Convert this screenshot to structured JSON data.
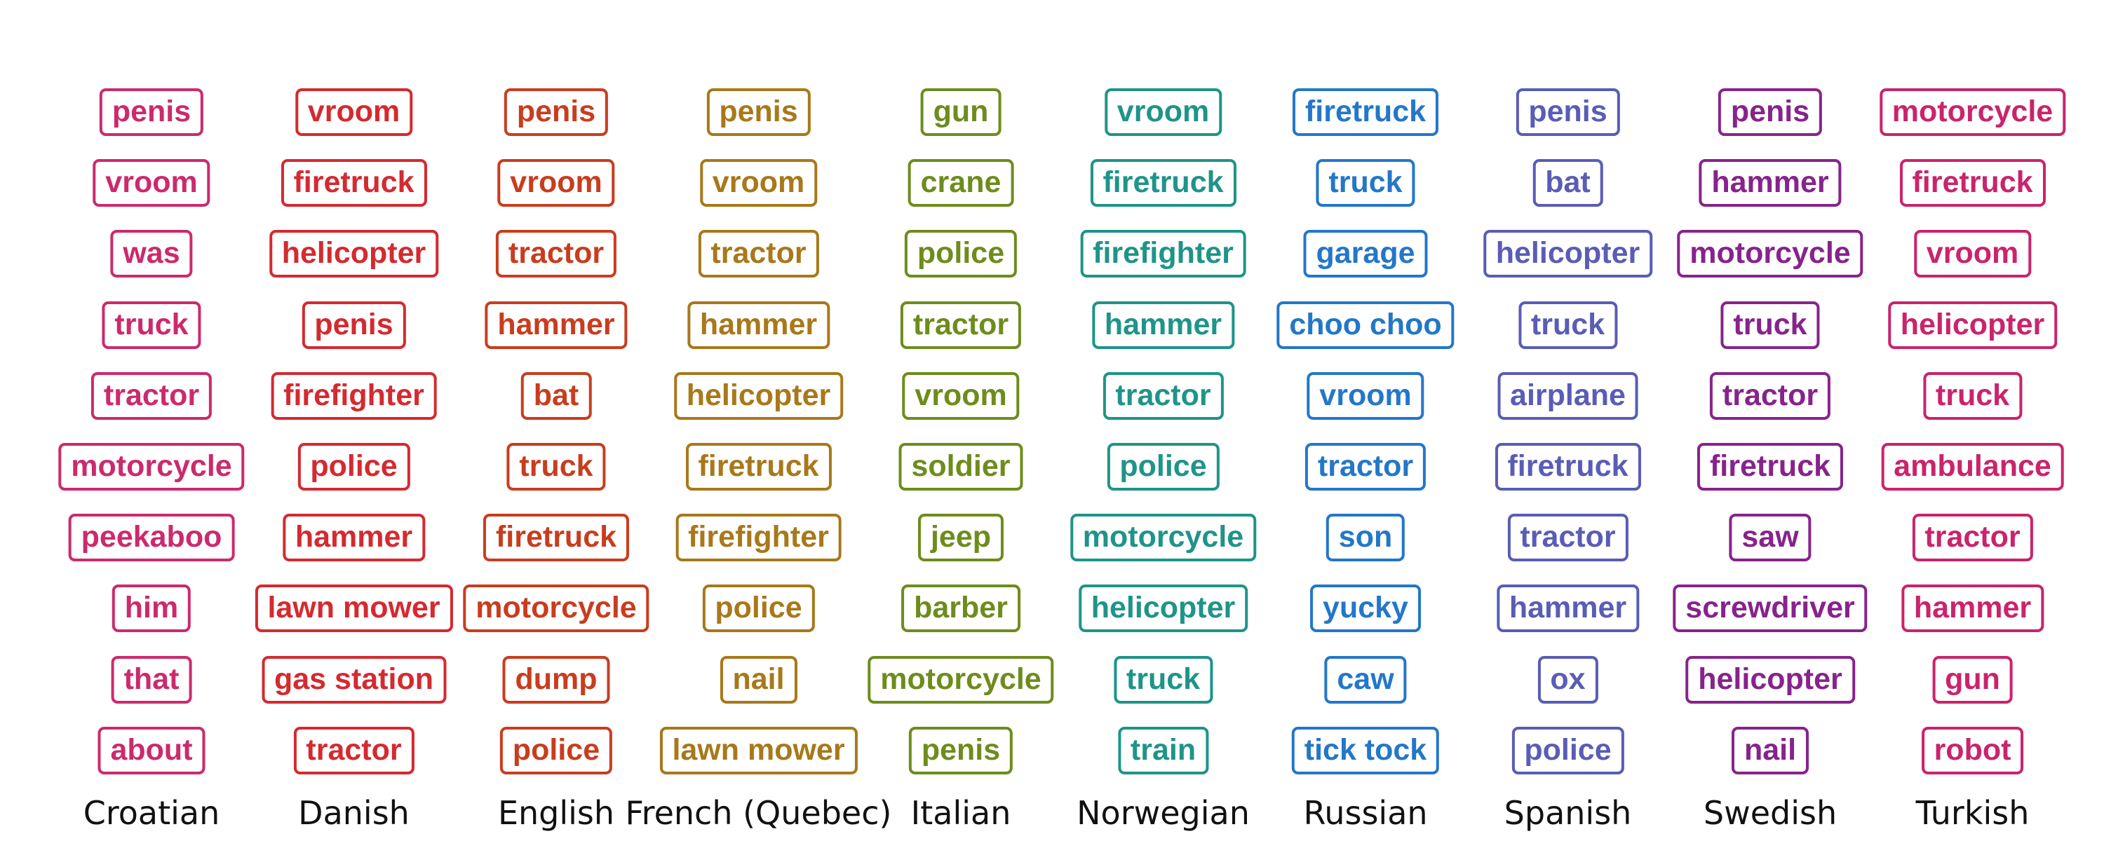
{
  "chart_data": {
    "type": "table",
    "title": "",
    "columns": [
      {
        "label": "Croatian",
        "color": "#cc2a6d",
        "words": [
          "penis",
          "vroom",
          "was",
          "truck",
          "tractor",
          "motorcycle",
          "peekaboo",
          "him",
          "that",
          "about"
        ]
      },
      {
        "label": "Danish",
        "color": "#d42a30",
        "words": [
          "vroom",
          "firetruck",
          "helicopter",
          "penis",
          "firefighter",
          "police",
          "hammer",
          "lawn mower",
          "gas station",
          "tractor"
        ]
      },
      {
        "label": "English",
        "color": "#c83d1e",
        "words": [
          "penis",
          "vroom",
          "tractor",
          "hammer",
          "bat",
          "truck",
          "firetruck",
          "motorcycle",
          "dump",
          "police"
        ]
      },
      {
        "label": "French (Quebec)",
        "color": "#a8781a",
        "words": [
          "penis",
          "vroom",
          "tractor",
          "hammer",
          "helicopter",
          "firetruck",
          "firefighter",
          "police",
          "nail",
          "lawn mower"
        ]
      },
      {
        "label": "Italian",
        "color": "#6e8c1c",
        "words": [
          "gun",
          "crane",
          "police",
          "tractor",
          "vroom",
          "soldier",
          "jeep",
          "barber",
          "motorcycle",
          "penis"
        ]
      },
      {
        "label": "Norwegian",
        "color": "#1f9488",
        "words": [
          "vroom",
          "firetruck",
          "firefighter",
          "hammer",
          "tractor",
          "police",
          "motorcycle",
          "helicopter",
          "truck",
          "train"
        ]
      },
      {
        "label": "Russian",
        "color": "#2377c9",
        "words": [
          "firetruck",
          "truck",
          "garage",
          "choo choo",
          "vroom",
          "tractor",
          "son",
          "yucky",
          "caw",
          "tick tock"
        ]
      },
      {
        "label": "Spanish",
        "color": "#5a5cb6",
        "words": [
          "penis",
          "bat",
          "helicopter",
          "truck",
          "airplane",
          "firetruck",
          "tractor",
          "hammer",
          "ox",
          "police"
        ]
      },
      {
        "label": "Swedish",
        "color": "#87238c",
        "words": [
          "penis",
          "hammer",
          "motorcycle",
          "truck",
          "tractor",
          "firetruck",
          "saw",
          "screwdriver",
          "helicopter",
          "nail"
        ]
      },
      {
        "label": "Turkish",
        "color": "#c9246c",
        "words": [
          "motorcycle",
          "firetruck",
          "vroom",
          "helicopter",
          "truck",
          "ambulance",
          "tractor",
          "hammer",
          "gun",
          "robot"
        ]
      }
    ]
  }
}
